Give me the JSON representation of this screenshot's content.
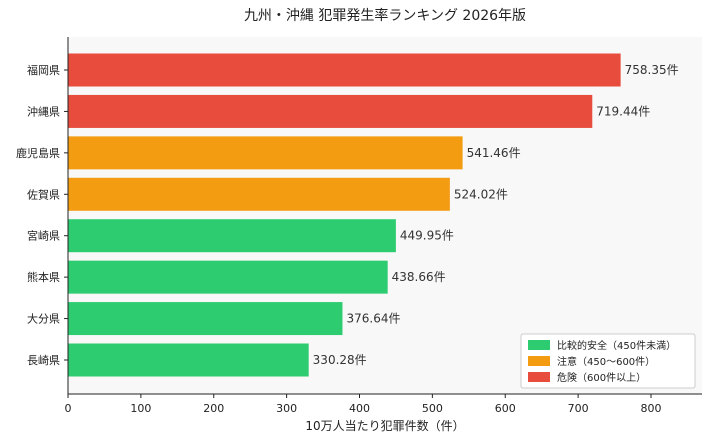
{
  "chart_data": {
    "type": "bar",
    "orientation": "horizontal",
    "title": "九州・沖縄 犯罪発生率ランキング 2026年版",
    "xlabel": "10万人当たり犯罪件数（件）",
    "ylabel": "",
    "xlim": [
      0,
      870
    ],
    "x_ticks": [
      0,
      100,
      200,
      300,
      400,
      500,
      600,
      700,
      800
    ],
    "grid": false,
    "legend_position": "bottom-right",
    "value_suffix": "件",
    "categories": [
      "福岡県",
      "沖縄県",
      "鹿児島県",
      "佐賀県",
      "宮崎県",
      "熊本県",
      "大分県",
      "長崎県"
    ],
    "values": [
      758.35,
      719.44,
      541.46,
      524.02,
      449.95,
      438.66,
      376.64,
      330.28
    ],
    "data_labels": [
      "758.35件",
      "719.44件",
      "541.46件",
      "524.02件",
      "449.95件",
      "438.66件",
      "376.64件",
      "330.28件"
    ],
    "bar_levels": [
      "danger",
      "danger",
      "caution",
      "caution",
      "safe",
      "safe",
      "safe",
      "safe"
    ],
    "legend": [
      {
        "key": "safe",
        "label": "比較的安全（450件未満）",
        "color": "#2ecc71"
      },
      {
        "key": "caution",
        "label": "注意（450〜600件）",
        "color": "#f39c12"
      },
      {
        "key": "danger",
        "label": "危険（600件以上）",
        "color": "#e74c3c"
      }
    ]
  }
}
